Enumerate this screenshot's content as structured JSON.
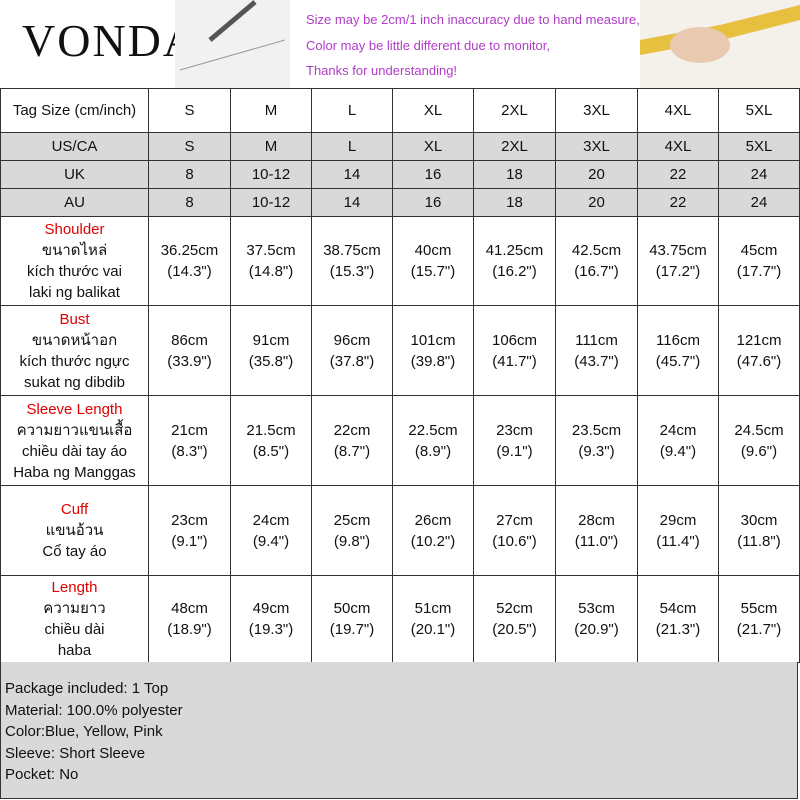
{
  "header": {
    "brand": "VONDA",
    "notes": [
      "Size may be 2cm/1 inch inaccuracy due to hand measure,",
      "Color may be little different due to monitor,",
      "Thanks for understanding!"
    ]
  },
  "table": {
    "header": [
      "Tag Size (cm/inch)",
      "S",
      "M",
      "L",
      "XL",
      "2XL",
      "3XL",
      "4XL",
      "5XL"
    ],
    "size_rows": [
      [
        "US/CA",
        "S",
        "M",
        "L",
        "XL",
        "2XL",
        "3XL",
        "4XL",
        "5XL"
      ],
      [
        "UK",
        "8",
        "10-12",
        "14",
        "16",
        "18",
        "20",
        "22",
        "24"
      ],
      [
        "AU",
        "8",
        "10-12",
        "14",
        "16",
        "18",
        "20",
        "22",
        "24"
      ]
    ],
    "measure_rows": [
      {
        "label": "Shoulder",
        "translations": [
          "ขนาดไหล่",
          "kích thước vai",
          "laki ng balikat"
        ],
        "values": [
          [
            "36.25cm",
            "(14.3\")"
          ],
          [
            "37.5cm",
            "(14.8\")"
          ],
          [
            "38.75cm",
            "(15.3\")"
          ],
          [
            "40cm",
            "(15.7\")"
          ],
          [
            "41.25cm",
            "(16.2\")"
          ],
          [
            "42.5cm",
            "(16.7\")"
          ],
          [
            "43.75cm",
            "(17.2\")"
          ],
          [
            "45cm",
            "(17.7\")"
          ]
        ]
      },
      {
        "label": "Bust",
        "translations": [
          "ขนาดหน้าอก",
          "kích thước ngực",
          "sukat ng dibdib"
        ],
        "values": [
          [
            "86cm",
            "(33.9\")"
          ],
          [
            "91cm",
            "(35.8\")"
          ],
          [
            "96cm",
            "(37.8\")"
          ],
          [
            "101cm",
            "(39.8\")"
          ],
          [
            "106cm",
            "(41.7\")"
          ],
          [
            "111cm",
            "(43.7\")"
          ],
          [
            "116cm",
            "(45.7\")"
          ],
          [
            "121cm",
            "(47.6\")"
          ]
        ]
      },
      {
        "label": "Sleeve Length",
        "translations": [
          "ความยาวแขนเสื้อ",
          "chiều dài tay áo",
          "Haba ng Manggas"
        ],
        "values": [
          [
            "21cm",
            "(8.3\")"
          ],
          [
            "21.5cm",
            "(8.5\")"
          ],
          [
            "22cm",
            "(8.7\")"
          ],
          [
            "22.5cm",
            "(8.9\")"
          ],
          [
            "23cm",
            "(9.1\")"
          ],
          [
            "23.5cm",
            "(9.3\")"
          ],
          [
            "24cm",
            "(9.4\")"
          ],
          [
            "24.5cm",
            "(9.6\")"
          ]
        ]
      },
      {
        "label": "Cuff",
        "translations": [
          "แขนอ้วน",
          "Cổ tay áo"
        ],
        "values": [
          [
            "23cm",
            "(9.1\")"
          ],
          [
            "24cm",
            "(9.4\")"
          ],
          [
            "25cm",
            "(9.8\")"
          ],
          [
            "26cm",
            "(10.2\")"
          ],
          [
            "27cm",
            "(10.6\")"
          ],
          [
            "28cm",
            "(11.0\")"
          ],
          [
            "29cm",
            "(11.4\")"
          ],
          [
            "30cm",
            "(11.8\")"
          ]
        ]
      },
      {
        "label": "Length",
        "translations": [
          "ความยาว",
          "chiều dài",
          "haba"
        ],
        "values": [
          [
            "48cm",
            "(18.9\")"
          ],
          [
            "49cm",
            "(19.3\")"
          ],
          [
            "50cm",
            "(19.7\")"
          ],
          [
            "51cm",
            "(20.1\")"
          ],
          [
            "52cm",
            "(20.5\")"
          ],
          [
            "53cm",
            "(20.9\")"
          ],
          [
            "54cm",
            "(21.3\")"
          ],
          [
            "55cm",
            "(21.7\")"
          ]
        ]
      }
    ]
  },
  "footer": [
    "Package included: 1 Top",
    "Material: 100.0% polyester",
    "Color:Blue, Yellow, Pink",
    "Sleeve: Short Sleeve",
    "Pocket: No"
  ]
}
